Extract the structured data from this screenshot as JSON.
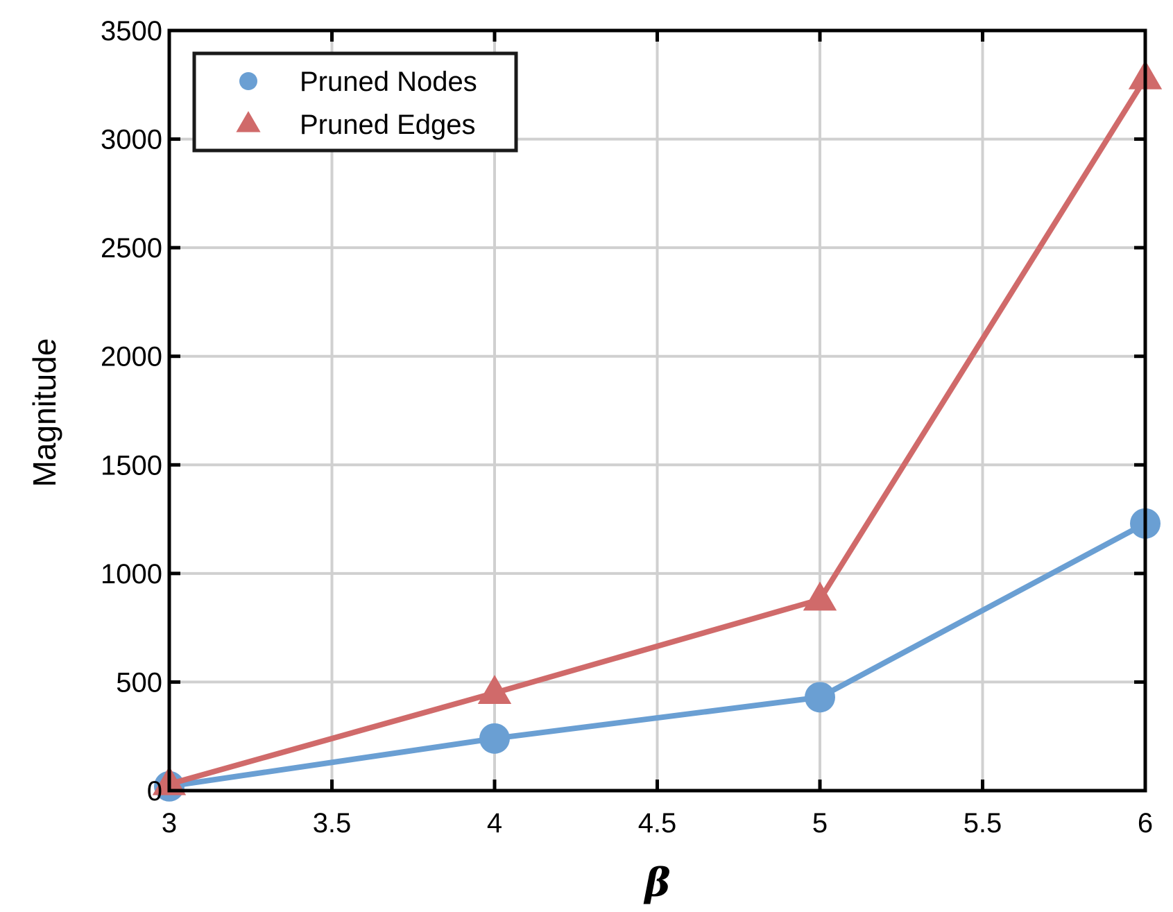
{
  "chart_data": {
    "type": "line",
    "title": "",
    "xlabel": "β",
    "ylabel": "Magnitude",
    "xlim": [
      3,
      6
    ],
    "ylim": [
      0,
      3500
    ],
    "xticks": [
      3,
      3.5,
      4,
      4.5,
      5,
      5.5,
      6
    ],
    "xtick_labels": [
      "3",
      "3.5",
      "4",
      "4.5",
      "5",
      "5.5",
      "6"
    ],
    "yticks": [
      0,
      500,
      1000,
      1500,
      2000,
      2500,
      3000,
      3500
    ],
    "ytick_labels": [
      "0",
      "500",
      "1000",
      "1500",
      "2000",
      "2500",
      "3000",
      "3500"
    ],
    "grid": true,
    "legend_position": "top-left",
    "series": [
      {
        "name": "Pruned Nodes",
        "marker": "circle",
        "color": "#6a9fd3",
        "x": [
          3,
          4,
          5,
          6
        ],
        "y": [
          20,
          240,
          430,
          1230
        ]
      },
      {
        "name": "Pruned Edges",
        "marker": "triangle",
        "color": "#d06a6a",
        "x": [
          3,
          4,
          5,
          6
        ],
        "y": [
          30,
          450,
          880,
          3280
        ]
      }
    ]
  }
}
